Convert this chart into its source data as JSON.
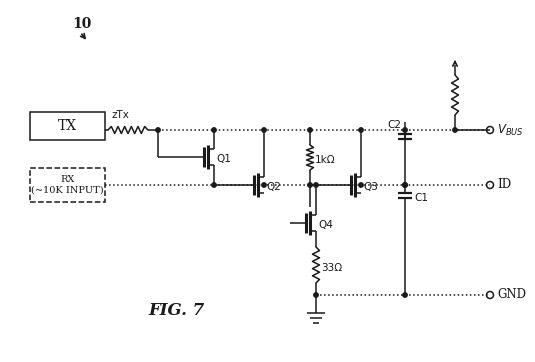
{
  "title": "FIG. 7",
  "label_10": "10",
  "label_TX": "TX",
  "label_RX": "RX\n(~10K INPUT)",
  "label_zTx": "zTx",
  "label_Q1": "Q1",
  "label_Q2": "Q2",
  "label_Q3": "Q3",
  "label_Q4": "Q4",
  "label_C1": "C1",
  "label_C2": "C2",
  "label_1k": "1kΩ",
  "label_33": "33Ω",
  "label_ID": "ID",
  "label_GND": "GND",
  "bg_color": "#ffffff",
  "line_color": "#1a1a1a",
  "fig_width": 5.35,
  "fig_height": 3.62,
  "dpi": 100
}
